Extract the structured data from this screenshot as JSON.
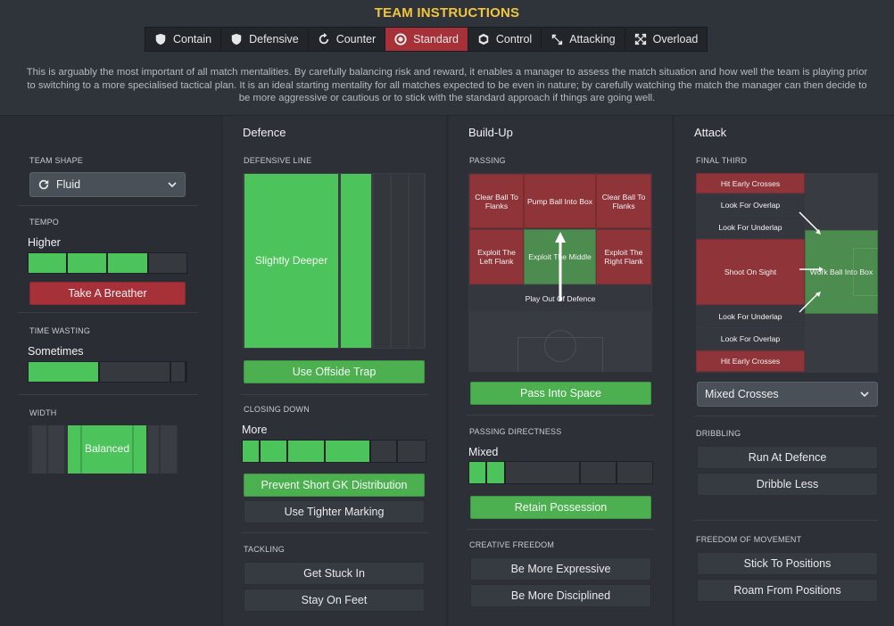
{
  "header": {
    "title": "TEAM INSTRUCTIONS",
    "tabs": [
      {
        "label": "Contain",
        "icon": "contain-icon",
        "active": false
      },
      {
        "label": "Defensive",
        "icon": "shield-icon",
        "active": false
      },
      {
        "label": "Counter",
        "icon": "counter-icon",
        "active": false
      },
      {
        "label": "Standard",
        "icon": "standard-icon",
        "active": true
      },
      {
        "label": "Control",
        "icon": "control-icon",
        "active": false
      },
      {
        "label": "Attacking",
        "icon": "attacking-icon",
        "active": false
      },
      {
        "label": "Overload",
        "icon": "overload-icon",
        "active": false
      }
    ],
    "description": "This is arguably the most important of all match mentalities. By carefully balancing risk and reward, it enables a manager to assess the match situation and how well the team is playing prior to switching to a more specialised tactical plan. It is an ideal starting mentality for all matches expected to be even in nature; by carefully watching the match the manager can then decide to be more aggressive or cautious or to stick with the standard approach if things are going well."
  },
  "left": {
    "team_shape_label": "TEAM SHAPE",
    "team_shape_value": "Fluid",
    "tempo_label": "TEMPO",
    "tempo_value": "Higher",
    "tempo_level": 0.8,
    "tempo_button": "Take A Breather",
    "time_wasting_label": "TIME WASTING",
    "time_wasting_value": "Sometimes",
    "time_wasting_level": 0.4,
    "width_label": "WIDTH",
    "width_value": "Balanced"
  },
  "defence": {
    "title": "Defence",
    "line_label": "DEFENSIVE LINE",
    "line_value": "Slightly Deeper",
    "offside_button": "Use Offside Trap",
    "closing_label": "CLOSING DOWN",
    "closing_value": "More",
    "closing_level": 0.71,
    "gk_button": "Prevent Short GK Distribution",
    "marking_button": "Use Tighter Marking",
    "tackling_label": "TACKLING",
    "tackle_button_1": "Get Stuck In",
    "tackle_button_2": "Stay On Feet"
  },
  "buildup": {
    "title": "Build-Up",
    "passing_label": "PASSING",
    "zones": {
      "clear_left": "Clear Ball To Flanks",
      "pump": "Pump Ball Into Box",
      "clear_right": "Clear Ball To Flanks",
      "exploit_left": "Exploit The Left Flank",
      "exploit_middle": "Exploit The Middle",
      "exploit_right": "Exploit The Right Flank",
      "play_out": "Play Out Of Defence"
    },
    "space_button": "Pass Into Space",
    "directness_label": "PASSING DIRECTNESS",
    "directness_value": "Mixed",
    "directness_level": 0.2,
    "possession_button": "Retain Possession",
    "creative_label": "CREATIVE FREEDOM",
    "creative_button_1": "Be More Expressive",
    "creative_button_2": "Be More Disciplined"
  },
  "attack": {
    "title": "Attack",
    "final_third_label": "FINAL THIRD",
    "zones": {
      "hit_early_top": "Hit Early Crosses",
      "overlap_top": "Look For Overlap",
      "underlap_top": "Look For Underlap",
      "shoot": "Shoot On Sight",
      "work_ball": "Work Ball Into Box",
      "underlap_bottom": "Look For Underlap",
      "overlap_bottom": "Look For Overlap",
      "hit_early_bottom": "Hit Early Crosses"
    },
    "crosses_value": "Mixed Crosses",
    "dribbling_label": "DRIBBLING",
    "dribble_button_1": "Run At Defence",
    "dribble_button_2": "Dribble Less",
    "freedom_label": "FREEDOM OF MOVEMENT",
    "freedom_button_1": "Stick To Positions",
    "freedom_button_2": "Roam From Positions"
  }
}
